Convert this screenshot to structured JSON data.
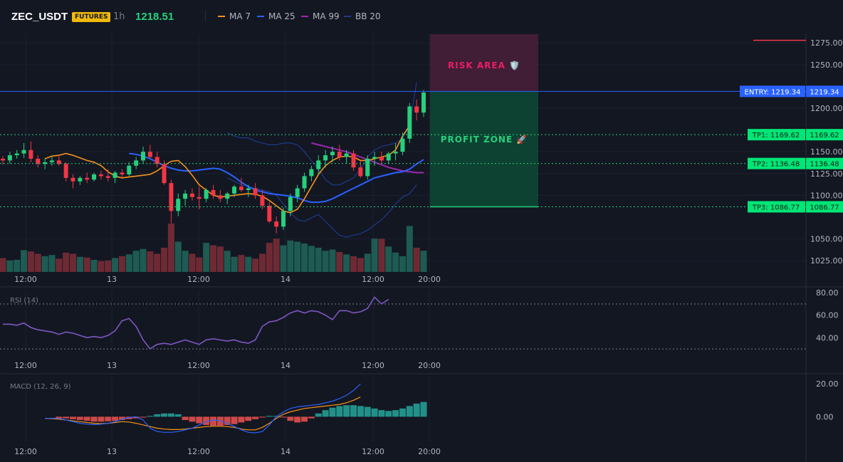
{
  "header": {
    "symbol": "ZEC_USDT",
    "badge": "FUTURES",
    "timeframe": "1h",
    "price": "1218.51",
    "legend": [
      {
        "label": "MA 7",
        "color": "#f7931a"
      },
      {
        "label": "MA 25",
        "color": "#2962ff"
      },
      {
        "label": "MA 99",
        "color": "#9c27b0"
      },
      {
        "label": "BB 20",
        "color": "#1e3a8a"
      }
    ]
  },
  "trade": {
    "risk_label": "RISK AREA 🛡️",
    "profit_label": "PROFIT ZONE 🚀",
    "entry_value": 1219.34,
    "entry_label": "ENTRY: 1219.34",
    "entry_axis": "1219.34",
    "stop_value": 1278,
    "tps": [
      {
        "value": 1169.62,
        "label": "TP1: 1169.62",
        "axis": "1169.62"
      },
      {
        "value": 1136.48,
        "label": "TP2: 1136.48",
        "axis": "1136.48"
      },
      {
        "value": 1086.77,
        "label": "TP3: 1086.77",
        "axis": "1086.77"
      }
    ]
  },
  "panes": {
    "rsi_title": "RSI (14)",
    "macd_title": "MACD (12, 26, 9)"
  },
  "chart_data": {
    "type": "candlestick",
    "interval": "1h",
    "x_ticks": [
      "12:00",
      "13",
      "12:00",
      "14",
      "12:00",
      "20:00"
    ],
    "price_axis": {
      "ticks": [
        1025,
        1050,
        1100,
        1125,
        1150,
        1200,
        1250,
        1275
      ],
      "ylim": [
        1012,
        1285
      ]
    },
    "candles": [
      [
        1142,
        1145,
        1135,
        1140
      ],
      [
        1140,
        1150,
        1136,
        1146
      ],
      [
        1146,
        1152,
        1142,
        1148
      ],
      [
        1148,
        1160,
        1143,
        1152
      ],
      [
        1152,
        1162,
        1138,
        1142
      ],
      [
        1142,
        1146,
        1132,
        1136
      ],
      [
        1136,
        1142,
        1130,
        1138
      ],
      [
        1138,
        1144,
        1134,
        1140
      ],
      [
        1140,
        1146,
        1134,
        1136
      ],
      [
        1136,
        1138,
        1116,
        1120
      ],
      [
        1120,
        1124,
        1108,
        1116
      ],
      [
        1116,
        1122,
        1112,
        1120
      ],
      [
        1120,
        1126,
        1114,
        1118
      ],
      [
        1118,
        1126,
        1116,
        1124
      ],
      [
        1124,
        1128,
        1118,
        1122
      ],
      [
        1122,
        1130,
        1116,
        1120
      ],
      [
        1120,
        1128,
        1114,
        1126
      ],
      [
        1126,
        1130,
        1120,
        1124
      ],
      [
        1124,
        1138,
        1122,
        1134
      ],
      [
        1134,
        1144,
        1130,
        1140
      ],
      [
        1140,
        1156,
        1136,
        1150
      ],
      [
        1150,
        1158,
        1142,
        1144
      ],
      [
        1144,
        1150,
        1132,
        1136
      ],
      [
        1136,
        1140,
        1112,
        1114
      ],
      [
        1114,
        1118,
        1068,
        1082
      ],
      [
        1082,
        1102,
        1076,
        1096
      ],
      [
        1096,
        1106,
        1088,
        1102
      ],
      [
        1102,
        1108,
        1094,
        1098
      ],
      [
        1098,
        1110,
        1084,
        1096
      ],
      [
        1096,
        1108,
        1092,
        1106
      ],
      [
        1106,
        1112,
        1096,
        1100
      ],
      [
        1100,
        1106,
        1092,
        1096
      ],
      [
        1096,
        1104,
        1090,
        1102
      ],
      [
        1102,
        1112,
        1098,
        1110
      ],
      [
        1110,
        1120,
        1104,
        1106
      ],
      [
        1106,
        1112,
        1098,
        1108
      ],
      [
        1108,
        1114,
        1096,
        1100
      ],
      [
        1100,
        1106,
        1084,
        1088
      ],
      [
        1088,
        1092,
        1068,
        1070
      ],
      [
        1070,
        1076,
        1056,
        1064
      ],
      [
        1064,
        1086,
        1060,
        1082
      ],
      [
        1082,
        1102,
        1076,
        1098
      ],
      [
        1098,
        1112,
        1092,
        1108
      ],
      [
        1108,
        1126,
        1104,
        1122
      ],
      [
        1122,
        1134,
        1116,
        1130
      ],
      [
        1130,
        1146,
        1124,
        1140
      ],
      [
        1140,
        1152,
        1132,
        1146
      ],
      [
        1146,
        1156,
        1138,
        1150
      ],
      [
        1150,
        1158,
        1140,
        1144
      ],
      [
        1144,
        1152,
        1136,
        1148
      ],
      [
        1148,
        1152,
        1128,
        1132
      ],
      [
        1132,
        1140,
        1120,
        1122
      ],
      [
        1122,
        1146,
        1118,
        1142
      ],
      [
        1142,
        1150,
        1134,
        1144
      ],
      [
        1144,
        1150,
        1136,
        1140
      ],
      [
        1140,
        1150,
        1136,
        1148
      ],
      [
        1148,
        1160,
        1140,
        1150
      ],
      [
        1150,
        1172,
        1146,
        1165
      ],
      [
        1165,
        1206,
        1160,
        1202
      ],
      [
        1202,
        1210,
        1186,
        1195
      ],
      [
        1195,
        1221,
        1190,
        1218
      ]
    ],
    "volume": [
      46,
      38,
      40,
      72,
      68,
      60,
      52,
      56,
      44,
      64,
      60,
      50,
      48,
      40,
      36,
      38,
      46,
      52,
      58,
      70,
      76,
      68,
      60,
      80,
      160,
      100,
      70,
      60,
      48,
      96,
      88,
      84,
      70,
      50,
      56,
      50,
      44,
      60,
      96,
      110,
      88,
      104,
      100,
      94,
      86,
      80,
      70,
      74,
      66,
      58,
      52,
      46,
      60,
      110,
      110,
      84,
      64,
      52,
      152,
      80,
      70
    ],
    "ma7": [
      1142,
      1145,
      1146,
      1148,
      1146,
      1143,
      1140,
      1138,
      1134,
      1127,
      1122,
      1120,
      1121,
      1122,
      1123,
      1124,
      1128,
      1134,
      1139,
      1140,
      1133,
      1123,
      1112,
      1106,
      1100,
      1098,
      1099,
      1100,
      1101,
      1102,
      1101,
      1099,
      1094,
      1088,
      1082,
      1080,
      1084,
      1096,
      1110,
      1124,
      1134,
      1140,
      1144,
      1145,
      1144,
      1140,
      1140,
      1142,
      1144,
      1146,
      1152,
      1168,
      1180
    ],
    "ma7_offset": 6,
    "ma25": [
      1148,
      1147,
      1145,
      1142,
      1138,
      1134,
      1131,
      1129,
      1128,
      1128,
      1129,
      1130,
      1131,
      1130,
      1126,
      1121,
      1115,
      1110,
      1106,
      1104,
      1102,
      1101,
      1100,
      1099,
      1097,
      1094,
      1092,
      1092,
      1093,
      1096,
      1100,
      1104,
      1108,
      1112,
      1116,
      1120,
      1122,
      1124,
      1126,
      1127,
      1130,
      1136,
      1141
    ],
    "ma25_offset": 18,
    "ma99": [
      1160,
      1158,
      1156,
      1154,
      1152,
      1150,
      1147,
      1144,
      1141,
      1138,
      1135,
      1132,
      1130,
      1128,
      1127,
      1126,
      1126
    ],
    "ma99_offset": 44,
    "bb_upper": [
      1172,
      1168,
      1166,
      1166,
      1162,
      1160,
      1158,
      1158,
      1160,
      1160,
      1158,
      1150,
      1140,
      1130,
      1118,
      1112,
      1112,
      1116,
      1120,
      1130,
      1144,
      1152,
      1156,
      1158,
      1160,
      1165,
      1180,
      1230
    ],
    "bb_lower": [
      1120,
      1116,
      1112,
      1110,
      1108,
      1106,
      1104,
      1100,
      1090,
      1080,
      1072,
      1070,
      1074,
      1078,
      1070,
      1062,
      1054,
      1052,
      1054,
      1056,
      1060,
      1066,
      1072,
      1080,
      1090,
      1098,
      1102,
      1112
    ],
    "bb_offset": 32,
    "rsi": {
      "ticks": [
        40,
        60,
        80
      ],
      "bands": [
        30,
        70
      ],
      "ylim": [
        25,
        82
      ],
      "values": [
        52,
        52,
        51,
        53,
        49,
        47,
        46,
        45,
        43,
        45,
        44,
        42,
        40,
        41,
        40,
        42,
        46,
        55,
        57,
        50,
        38,
        30,
        34,
        35,
        34,
        36,
        38,
        36,
        34,
        38,
        39,
        38,
        37,
        38,
        36,
        35,
        38,
        50,
        54,
        55,
        58,
        62,
        64,
        62,
        64,
        63,
        60,
        56,
        64,
        64,
        62,
        63,
        66,
        76,
        70,
        74
      ]
    },
    "macd": {
      "ticks": [
        0,
        20
      ],
      "ylim": [
        -15,
        24
      ],
      "hist": [
        -1,
        -1,
        -1.5,
        -2,
        -2.5,
        -3,
        -3,
        -2.8,
        -2.5,
        -2,
        -1.5,
        -1,
        -0.5,
        0.5,
        1.5,
        2,
        2,
        1.5,
        -2,
        -3,
        -4,
        -5,
        -5.5,
        -5.5,
        -5,
        -4.5,
        -3.5,
        -2.5,
        -1.5,
        -0.5,
        0.5,
        0.5,
        -0.5,
        -2.5,
        -3.5,
        -3,
        -1,
        2,
        4,
        5.5,
        6.5,
        7,
        7,
        6.5,
        6,
        5,
        4,
        3.5,
        4,
        5,
        6.5,
        8,
        9
      ],
      "line": [
        -1,
        -1,
        -1,
        -2,
        -3,
        -4,
        -4.5,
        -4.8,
        -4.5,
        -4,
        -3,
        -1.5,
        -0.5,
        0,
        -2,
        -7,
        -9,
        -9.5,
        -9.5,
        -9,
        -8,
        -7,
        -5,
        -3,
        -2,
        -2.5,
        -4,
        -6,
        -8,
        -9.5,
        -9.8,
        -9,
        -5,
        0,
        3,
        5,
        6,
        6.5,
        7,
        7.5,
        8.5,
        9.5,
        11,
        13,
        16,
        20
      ],
      "line_offset": 6,
      "signal": [
        -1,
        -1.2,
        -1.5,
        -2,
        -2.5,
        -3,
        -3.5,
        -4,
        -4.2,
        -4,
        -3.5,
        -3,
        -3.2,
        -4,
        -5,
        -6,
        -7,
        -7.5,
        -7.8,
        -7.8,
        -7.5,
        -7,
        -6.5,
        -6,
        -5.8,
        -5.8,
        -6,
        -6.5,
        -7.5,
        -8,
        -8,
        -6.5,
        -4,
        -1,
        1.5,
        3,
        4,
        5,
        5.5,
        6,
        6.5,
        7,
        7.5,
        8.5,
        10,
        12
      ],
      "signal_offset": 6
    }
  }
}
